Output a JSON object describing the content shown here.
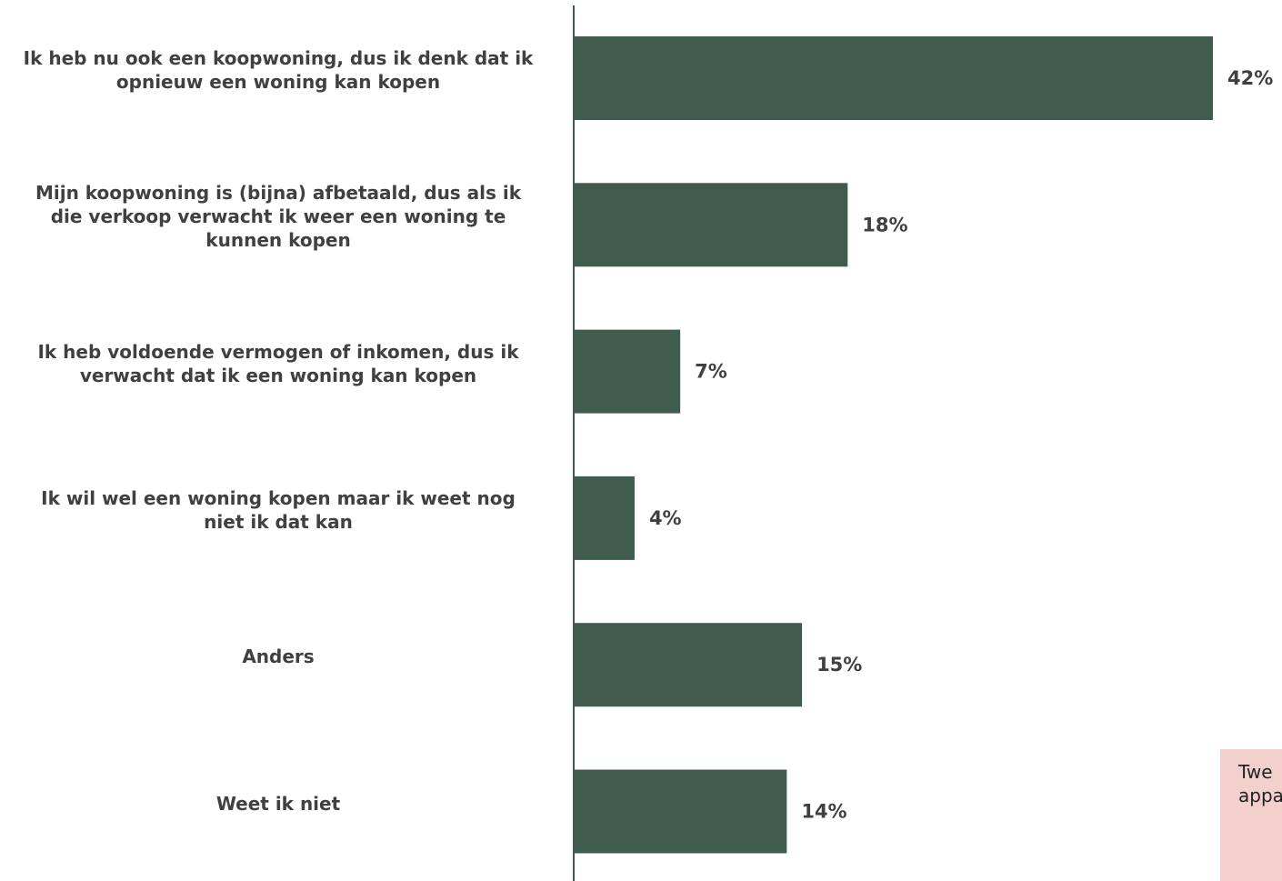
{
  "chart_data": {
    "type": "bar",
    "orientation": "horizontal",
    "categories": [
      [
        "Ik heb nu ook een koopwoning, dus ik denk dat ik",
        "opnieuw een woning kan kopen"
      ],
      [
        "Mijn koopwoning is (bijna) afbetaald, dus als ik",
        "die verkoop verwacht ik weer een woning te",
        "kunnen kopen"
      ],
      [
        "Ik heb voldoende vermogen of inkomen, dus ik",
        "verwacht dat ik een woning kan kopen"
      ],
      [
        "Ik wil wel een woning kopen maar ik weet nog",
        "niet ik dat kan"
      ],
      [
        "Anders"
      ],
      [
        "Weet ik niet"
      ]
    ],
    "values": [
      42,
      18,
      7,
      4,
      15,
      14
    ],
    "value_labels": [
      "42%",
      "18%",
      "7%",
      "4%",
      "15%",
      "14%"
    ],
    "value_unit": "%",
    "bar_color": "#3f5c4f",
    "axis_color": "#3f5c4f",
    "label_color": "#404040",
    "grid": false,
    "legend": "none"
  },
  "note": {
    "lines": [
      "Twe",
      "appa"
    ],
    "background": "#f2d0cb"
  }
}
